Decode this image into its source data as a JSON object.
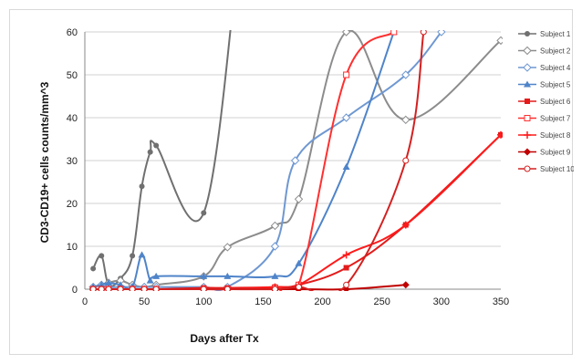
{
  "chart_data": {
    "type": "line",
    "title": "",
    "xlabel": "Days after Tx",
    "ylabel": "CD3-CD19+ cells counts/mm^3",
    "xlim": [
      0,
      350
    ],
    "ylim": [
      0,
      60
    ],
    "xticks": [
      "0",
      "50",
      "100",
      "150",
      "200",
      "250",
      "300",
      "350"
    ],
    "yticks": [
      "0",
      "10",
      "20",
      "30",
      "40",
      "50",
      "60"
    ],
    "grid": "horizontal",
    "legend": "right",
    "series": [
      {
        "name": "Subject 1",
        "color": "#707070",
        "marker": "circle",
        "x": [
          7,
          14,
          20,
          30,
          40,
          48,
          55,
          60,
          100,
          130
        ],
        "y": [
          4.8,
          7.8,
          1,
          2.5,
          7.8,
          24,
          32,
          33.5,
          17.8,
          80
        ]
      },
      {
        "name": "Subject 2",
        "color": "#8c8c8c",
        "marker": "diamond-open",
        "x": [
          7,
          14,
          20,
          30,
          40,
          50,
          60,
          100,
          120,
          160,
          180,
          220,
          270,
          350
        ],
        "y": [
          0.5,
          1,
          1.5,
          2,
          1,
          0.5,
          1,
          3,
          9.8,
          14.8,
          21,
          60,
          39.5,
          58
        ]
      },
      {
        "name": "Subject 4",
        "color": "#6f98d2",
        "marker": "diamond-open",
        "x": [
          7,
          14,
          20,
          30,
          40,
          50,
          60,
          100,
          120,
          160,
          177,
          220,
          270,
          300
        ],
        "y": [
          0.5,
          1,
          0.5,
          0.5,
          0.5,
          0.5,
          0.5,
          0.5,
          0.5,
          10,
          30,
          40,
          50,
          60
        ]
      },
      {
        "name": "Subject 5",
        "color": "#4f84c9",
        "marker": "triangle",
        "x": [
          7,
          14,
          20,
          30,
          40,
          48,
          55,
          60,
          100,
          120,
          160,
          180,
          220,
          260
        ],
        "y": [
          0.5,
          1,
          1.5,
          1,
          0.5,
          8,
          2,
          3,
          3,
          3,
          3,
          6,
          28.5,
          60
        ]
      },
      {
        "name": "Subject 6",
        "color": "#e31b1b",
        "marker": "square",
        "x": [
          7,
          14,
          20,
          30,
          40,
          50,
          60,
          100,
          120,
          160,
          180,
          220,
          270,
          350
        ],
        "y": [
          0,
          0,
          0,
          0,
          0,
          0,
          0,
          0.3,
          0.3,
          0.5,
          1,
          5,
          15,
          36
        ]
      },
      {
        "name": "Subject 7",
        "color": "#ff3030",
        "marker": "square-open",
        "x": [
          7,
          14,
          20,
          30,
          40,
          50,
          60,
          100,
          120,
          160,
          180,
          220,
          260
        ],
        "y": [
          0,
          0,
          0,
          0,
          0,
          0,
          0,
          0,
          0,
          0.3,
          1,
          50,
          60
        ]
      },
      {
        "name": "Subject 8",
        "color": "#ff1a1a",
        "marker": "plus",
        "x": [
          7,
          14,
          20,
          30,
          40,
          50,
          60,
          100,
          120,
          160,
          180,
          220,
          270,
          350
        ],
        "y": [
          0,
          0,
          0,
          0,
          0,
          0,
          0,
          0,
          0,
          0.5,
          1,
          8,
          15,
          36
        ]
      },
      {
        "name": "Subject 9",
        "color": "#c00000",
        "marker": "diamond",
        "x": [
          7,
          14,
          20,
          30,
          40,
          50,
          60,
          100,
          120,
          160,
          180,
          220,
          270
        ],
        "y": [
          0,
          0,
          0,
          0,
          0,
          0,
          0,
          0,
          0,
          0,
          0,
          0,
          1
        ]
      },
      {
        "name": "Subject 10",
        "color": "#d42020",
        "marker": "circle-open",
        "x": [
          7,
          14,
          20,
          30,
          40,
          50,
          60,
          100,
          120,
          160,
          180,
          220,
          270,
          285
        ],
        "y": [
          0,
          0,
          0,
          0,
          0,
          0,
          0,
          0,
          0,
          0,
          0.5,
          1,
          30,
          60
        ]
      }
    ]
  }
}
